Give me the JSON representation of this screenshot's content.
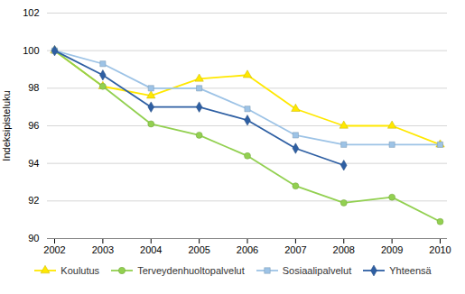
{
  "chart_data": {
    "type": "line",
    "x": [
      2002,
      2003,
      2004,
      2005,
      2006,
      2007,
      2008,
      2009,
      2010
    ],
    "xlim": [
      2002,
      2010
    ],
    "xticks": [
      2002,
      2003,
      2004,
      2005,
      2006,
      2007,
      2008,
      2009,
      2010
    ],
    "ylabel": "Indeksipisteluku",
    "ylim": [
      90,
      102
    ],
    "yticks": [
      90,
      92,
      94,
      96,
      98,
      100,
      102
    ],
    "grid": true,
    "legend": "bottom",
    "series": [
      {
        "name": "Koulutus",
        "color": "#FFE800",
        "marker": "triangle",
        "values": [
          100.0,
          98.1,
          97.6,
          98.5,
          98.7,
          96.9,
          96.0,
          96.0,
          95.0
        ]
      },
      {
        "name": "Terveydenhuoltopalvelut",
        "color": "#92D050",
        "marker": "circle",
        "values": [
          100.0,
          98.1,
          96.1,
          95.5,
          94.4,
          92.8,
          91.9,
          92.2,
          90.9
        ]
      },
      {
        "name": "Sosiaalipalvelut",
        "color": "#9DC3E6",
        "marker": "square",
        "values": [
          100.0,
          99.3,
          98.0,
          98.0,
          96.9,
          95.5,
          95.0,
          95.0,
          95.0
        ]
      },
      {
        "name": "Yhteensä",
        "color": "#2E5FA3",
        "marker": "diamond",
        "values": [
          100.0,
          98.7,
          97.0,
          97.0,
          96.3,
          94.8,
          93.9,
          null,
          null
        ]
      }
    ]
  }
}
